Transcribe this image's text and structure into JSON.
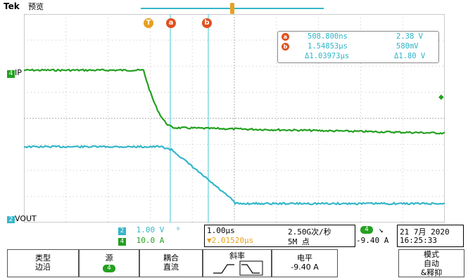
{
  "header": {
    "brand": "Tek",
    "mode": "预览",
    "trigger_position_marker": "T"
  },
  "cursors": {
    "markers": {
      "trigger": "T",
      "a": "a",
      "b": "b"
    },
    "readout": {
      "a_time": "508.800ns",
      "a_value": "2.38 V",
      "b_time": "1.54853μs",
      "b_value": "580mV",
      "delta_time": "Δ1.03973μs",
      "delta_value": "Δ1.80 V"
    }
  },
  "channels": {
    "ch4": {
      "number": "4",
      "label": "IP",
      "color": "#24a020"
    },
    "ch2": {
      "number": "2",
      "label": "VOUT",
      "color": "#35b6c9"
    }
  },
  "status_bar": {
    "ch2_scale": "1.00 V",
    "ch2_bw": "ᵇ",
    "ch4_scale": "10.0 A",
    "timebase": "1.00μs",
    "trigger_offset": "▼2.01520μs",
    "sample_rate": "2.50G次/秒",
    "record_length": "5M 点",
    "trig_channel": "4",
    "trig_slope": "↘",
    "trig_level": "-9.40 A",
    "date": "21 7月 2020",
    "time": "16:25:33"
  },
  "bottom_menu": {
    "type": {
      "title": "类型",
      "value": "边沿"
    },
    "source": {
      "title": "源",
      "value": "4"
    },
    "coupling": {
      "title": "耦合",
      "value": "直流"
    },
    "slope": {
      "title": "斜率"
    },
    "level": {
      "title": "电平",
      "value": "-9.40 A"
    },
    "mode": {
      "line1": "模式",
      "line2": "自动",
      "line3": "&释抑"
    }
  },
  "colors": {
    "grid": "#b8b8b8",
    "ch4": "#24a020",
    "ch2": "#35b6c9",
    "cursor": "#5fd0e0",
    "marker_orange": "#e8a020",
    "marker_red": "#e05020"
  }
}
